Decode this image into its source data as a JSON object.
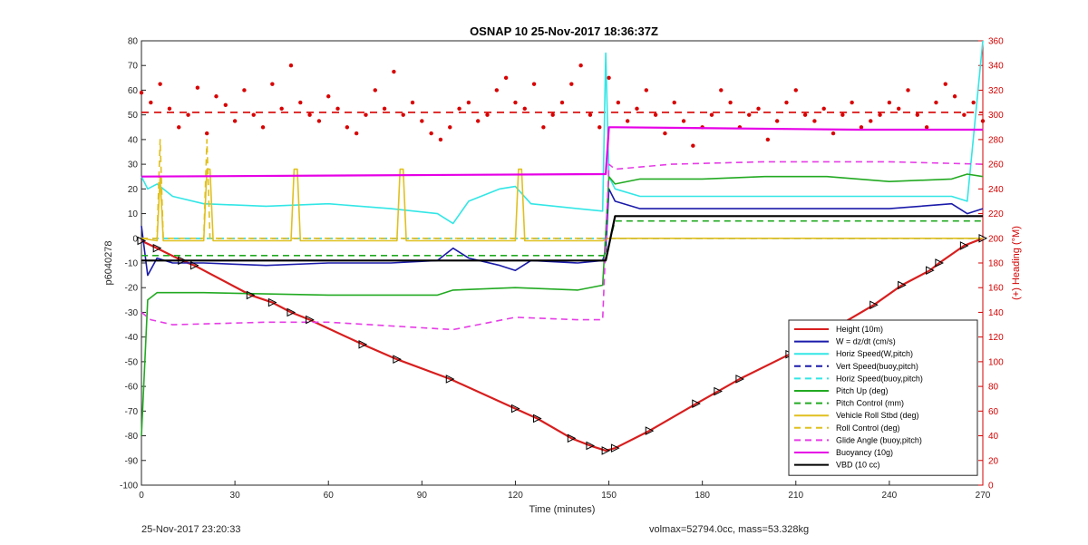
{
  "title": "OSNAP 10 25-Nov-2017 18:36:37Z",
  "footer_left": "25-Nov-2017 23:20:33",
  "footer_right": "volmax=52794.0cc, mass=53.328kg",
  "chart_data": {
    "type": "line",
    "xlabel": "Time (minutes)",
    "ylabel": "p6040278",
    "y2label": "(+) Heading (°M)",
    "xlim": [
      0,
      270
    ],
    "ylim": [
      -100,
      80
    ],
    "y2lim": [
      0,
      360
    ],
    "xticks": [
      "0",
      "30",
      "60",
      "90",
      "120",
      "150",
      "180",
      "210",
      "240",
      "270"
    ],
    "yticks": [
      "80",
      "70",
      "60",
      "50",
      "40",
      "30",
      "20",
      "10",
      "0",
      "-10",
      "-20",
      "-30",
      "-40",
      "-50",
      "-60",
      "-70",
      "-80",
      "-90",
      "-100"
    ],
    "y2ticks": [
      "360",
      "340",
      "320",
      "300",
      "280",
      "260",
      "240",
      "220",
      "200",
      "180",
      "160",
      "140",
      "120",
      "100",
      "80",
      "60",
      "40",
      "20",
      "0"
    ],
    "legend_position": "lower-right",
    "series": [
      {
        "name": "Height (10m)",
        "color": "#d81e1e",
        "style": "solid",
        "marker": "triangle",
        "x": [
          0,
          5,
          13,
          17,
          35,
          42,
          48,
          54,
          71,
          82,
          99,
          120,
          127,
          138,
          144,
          149,
          152,
          163,
          178,
          185,
          192,
          208,
          212,
          235,
          244,
          253,
          256,
          264,
          270
        ],
        "y": [
          -1,
          -4,
          -9,
          -11,
          -23,
          -26,
          -30,
          -33,
          -43,
          -49,
          -57,
          -69,
          -73,
          -81,
          -84,
          -86,
          -85,
          -78,
          -67,
          -62,
          -57,
          -47,
          -44,
          -27,
          -19,
          -13,
          -10,
          -3,
          0
        ]
      },
      {
        "name": "W = dz/dt (cm/s)",
        "color": "#1a1aaa",
        "style": "solid",
        "x": [
          0,
          2,
          5,
          10,
          20,
          40,
          60,
          80,
          95,
          100,
          105,
          115,
          120,
          125,
          140,
          148,
          149,
          150,
          152,
          160,
          180,
          200,
          220,
          240,
          260,
          265,
          270
        ],
        "y": [
          5,
          -15,
          -8,
          -10,
          -10,
          -11,
          -10,
          -10,
          -9,
          -4,
          -8,
          -11,
          -13,
          -9,
          -10,
          -9,
          -5,
          20,
          15,
          12,
          12,
          12,
          12,
          12,
          14,
          10,
          12
        ]
      },
      {
        "name": "Horiz Speed(W,pitch)",
        "color": "#33e6e6",
        "style": "solid",
        "x": [
          0,
          2,
          5,
          10,
          20,
          40,
          60,
          80,
          95,
          100,
          105,
          115,
          120,
          125,
          140,
          148,
          149,
          150,
          152,
          160,
          180,
          200,
          220,
          240,
          260,
          265,
          270
        ],
        "y": [
          25,
          20,
          22,
          17,
          14,
          13,
          14,
          12,
          10,
          6,
          15,
          20,
          21,
          14,
          12,
          11,
          75,
          25,
          20,
          17,
          17,
          17,
          17,
          17,
          17,
          15,
          80
        ]
      },
      {
        "name": "Vert Speed(buoy,pitch)",
        "color": "#1a1aaa",
        "style": "dashed",
        "x": [
          0,
          150,
          270
        ],
        "y": [
          0,
          0,
          0
        ]
      },
      {
        "name": "Horiz Speed(buoy,pitch)",
        "color": "#33e6e6",
        "style": "dashed",
        "x": [
          0,
          148,
          270
        ],
        "y": [
          0,
          0,
          0
        ]
      },
      {
        "name": "Pitch Up (deg)",
        "color": "#22aa22",
        "style": "solid",
        "x": [
          0,
          2,
          5,
          20,
          60,
          95,
          100,
          120,
          140,
          148,
          150,
          152,
          160,
          180,
          200,
          220,
          240,
          260,
          265,
          270
        ],
        "y": [
          -80,
          -25,
          -22,
          -22,
          -23,
          -23,
          -21,
          -20,
          -21,
          -19,
          25,
          22,
          24,
          24,
          25,
          25,
          23,
          24,
          26,
          25
        ]
      },
      {
        "name": "Pitch Control (mm)",
        "color": "#22aa22",
        "style": "dashed",
        "x": [
          0,
          148,
          149,
          152,
          270
        ],
        "y": [
          -7,
          -7,
          -7,
          7,
          7
        ]
      },
      {
        "name": "Vehicle Roll Stbd (deg)",
        "color": "#e0c020",
        "style": "solid",
        "x": [
          0,
          5,
          6,
          7,
          20,
          21,
          22,
          23,
          48,
          49,
          50,
          51,
          82,
          83,
          84,
          85,
          120,
          121,
          122,
          123,
          148,
          150,
          152,
          270
        ],
        "y": [
          0,
          -1,
          25,
          -1,
          -1,
          28,
          28,
          -1,
          -1,
          28,
          28,
          -1,
          -1,
          28,
          28,
          -1,
          -1,
          28,
          28,
          -1,
          -1,
          0,
          0,
          0
        ]
      },
      {
        "name": "Roll Control (deg)",
        "color": "#e0c020",
        "style": "dashed",
        "x": [
          0,
          5,
          6,
          7,
          20,
          21,
          22,
          150,
          152,
          270
        ],
        "y": [
          0,
          0,
          40,
          0,
          0,
          40,
          0,
          0,
          0,
          0
        ]
      },
      {
        "name": "Glide Angle (buoy,pitch)",
        "color": "#e63ce6",
        "style": "dashed",
        "x": [
          0,
          3,
          10,
          40,
          60,
          100,
          120,
          140,
          148,
          150,
          152,
          170,
          200,
          240,
          270
        ],
        "y": [
          -30,
          -33,
          -35,
          -34,
          -34,
          -37,
          -32,
          -33,
          -33,
          30,
          28,
          30,
          31,
          31,
          30
        ]
      },
      {
        "name": "Buoyancy (10g)",
        "color": "#e600e6",
        "style": "solid",
        "x": [
          0,
          148,
          149,
          150,
          152,
          230,
          270
        ],
        "y": [
          25,
          26,
          26,
          45,
          45,
          44,
          44
        ]
      },
      {
        "name": "VBD (10 cc)",
        "color": "#000000",
        "style": "solid",
        "x": [
          0,
          1,
          149,
          152,
          270
        ],
        "y": [
          -9,
          -9,
          -9,
          9,
          9
        ]
      }
    ],
    "heading_scatter": {
      "color": "#d80000",
      "mean": 302,
      "x": [
        0,
        3,
        6,
        9,
        12,
        15,
        18,
        21,
        24,
        27,
        30,
        33,
        36,
        39,
        42,
        45,
        48,
        51,
        54,
        57,
        60,
        63,
        66,
        69,
        72,
        75,
        78,
        81,
        84,
        87,
        90,
        93,
        96,
        99,
        102,
        105,
        108,
        111,
        114,
        117,
        120,
        123,
        126,
        129,
        132,
        135,
        138,
        141,
        144,
        147,
        150,
        153,
        156,
        159,
        162,
        165,
        168,
        171,
        174,
        177,
        180,
        183,
        186,
        189,
        192,
        195,
        198,
        201,
        204,
        207,
        210,
        213,
        216,
        219,
        222,
        225,
        228,
        231,
        234,
        237,
        240,
        243,
        246,
        249,
        252,
        255,
        258,
        261,
        264,
        267,
        270
      ],
      "y": [
        318,
        310,
        325,
        305,
        290,
        300,
        322,
        285,
        315,
        308,
        295,
        320,
        300,
        290,
        325,
        305,
        340,
        310,
        300,
        295,
        315,
        305,
        290,
        285,
        300,
        320,
        305,
        335,
        300,
        310,
        295,
        285,
        280,
        290,
        305,
        310,
        295,
        300,
        320,
        330,
        310,
        305,
        325,
        290,
        300,
        310,
        325,
        340,
        300,
        290,
        330,
        310,
        295,
        305,
        320,
        300,
        285,
        310,
        295,
        275,
        290,
        300,
        320,
        310,
        290,
        300,
        305,
        280,
        295,
        310,
        320,
        300,
        295,
        305,
        285,
        300,
        310,
        290,
        295,
        300,
        310,
        305,
        320,
        300,
        290,
        310,
        325,
        315,
        300,
        310,
        295
      ]
    }
  }
}
